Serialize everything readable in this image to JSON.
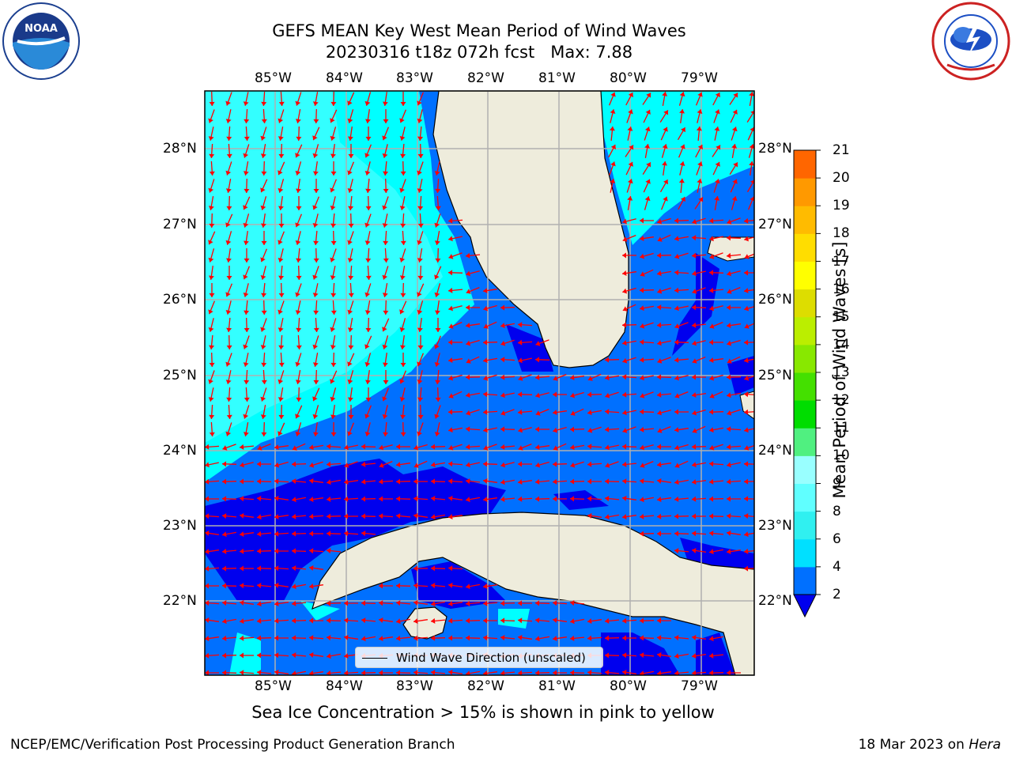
{
  "title": {
    "line1": "GEFS MEAN Key West Mean Period of Wind Waves",
    "line2": "20230316 t18z 072h fcst   Max: 7.88"
  },
  "logos": {
    "left": "noaa-logo",
    "right": "nws-logo"
  },
  "map": {
    "lon_ticks": [
      "85°W",
      "84°W",
      "83°W",
      "82°W",
      "81°W",
      "80°W",
      "79°W"
    ],
    "lat_ticks": [
      "28°N",
      "27°N",
      "26°N",
      "25°N",
      "24°N",
      "23°N",
      "22°N"
    ],
    "land_color": "#eeecdc",
    "arrow_color": "#ff0000",
    "gridline_color": "#b0b0b0"
  },
  "legend": {
    "label": "Wind Wave Direction (unscaled)"
  },
  "colorbar": {
    "label": "Mean Period of Wind Waves [s]",
    "ticks": [
      "2",
      "4",
      "6",
      "8",
      "9",
      "10",
      "11",
      "12",
      "13",
      "14",
      "15",
      "16",
      "17",
      "18",
      "19",
      "20",
      "21"
    ],
    "colors": [
      "#0070ff",
      "#00e0ff",
      "#30f0f0",
      "#60ffff",
      "#99ffff",
      "#50f080",
      "#00dd00",
      "#44e000",
      "#88e800",
      "#bbee00",
      "#dddd00",
      "#ffff00",
      "#ffdd00",
      "#ffbb00",
      "#ff9900",
      "#ff6600",
      "#ff3300",
      "#ff0000"
    ],
    "extend_color": "#0000ee"
  },
  "footer": {
    "note": "Sea Ice Concentration > 15% is shown in pink to yellow",
    "left": "NCEP/EMC/Verification Post Processing Product Generation Branch",
    "right_prefix": "18 Mar 2023 on ",
    "right_host": "Hera"
  }
}
